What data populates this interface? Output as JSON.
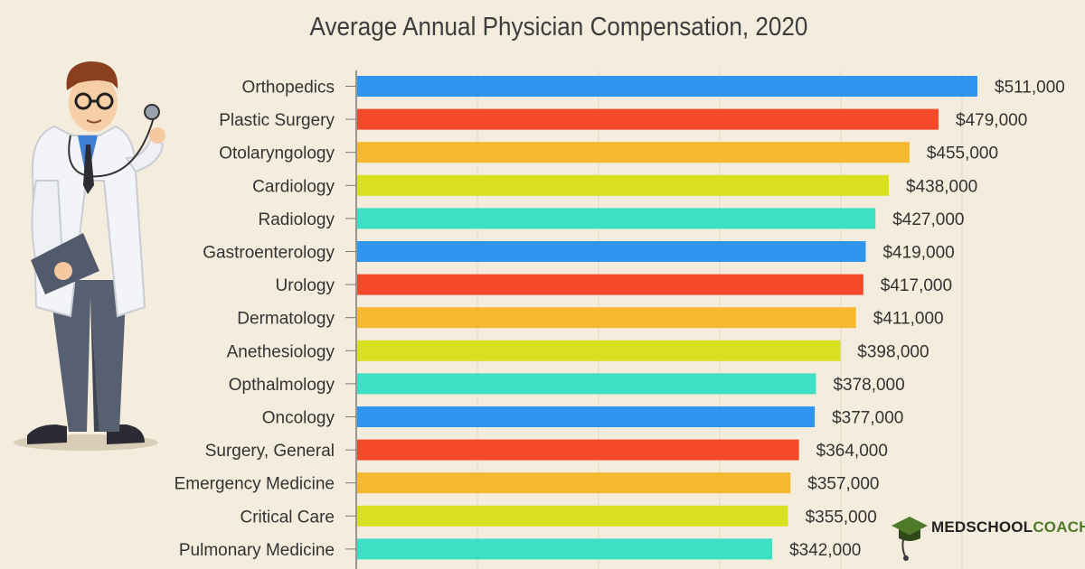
{
  "chart_data": {
    "type": "bar",
    "orientation": "horizontal",
    "title": "Average Annual Physician Compensation, 2020",
    "xlabel": "",
    "ylabel": "",
    "categories": [
      "Orthopedics",
      "Plastic Surgery",
      "Otolaryngology",
      "Cardiology",
      "Radiology",
      "Gastroenterology",
      "Urology",
      "Dermatology",
      "Anethesiology",
      "Opthalmology",
      "Oncology",
      "Surgery, General",
      "Emergency Medicine",
      "Critical Care",
      "Pulmonary Medicine"
    ],
    "values": [
      511000,
      479000,
      455000,
      438000,
      427000,
      419000,
      417000,
      411000,
      398000,
      378000,
      377000,
      364000,
      357000,
      355000,
      342000
    ],
    "value_labels": [
      "$511,000",
      "$479,000",
      "$455,000",
      "$438,000",
      "$427,000",
      "$419,000",
      "$417,000",
      "$411,000",
      "$398,000",
      "$378,000",
      "$377,000",
      "$364,000",
      "$357,000",
      "$355,000",
      "$342,000"
    ],
    "xlim": [
      0,
      511000
    ],
    "grid": true,
    "bar_colors": [
      "#3095ee",
      "#f5492b",
      "#f5b82e",
      "#d8e020",
      "#3ee0c5"
    ]
  },
  "brand": {
    "part1": "MEDSCHOOL",
    "part2": "COACH",
    "accent_color": "#4f7a2a"
  }
}
